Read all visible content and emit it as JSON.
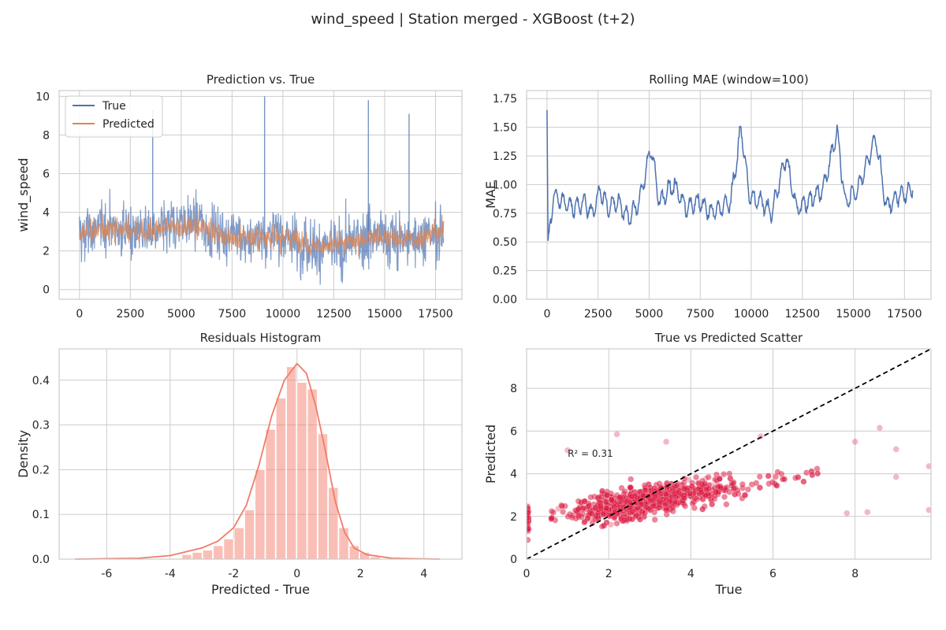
{
  "figure": {
    "suptitle": "wind_speed | Station merged - XGBoost (t+2)"
  },
  "colors": {
    "true_line": "#4C72B0",
    "pred_line": "#DD8452",
    "mae_line": "#4C72B0",
    "hist": "#F4806F",
    "kde": "#F07C68",
    "scatter": "#DC143C",
    "grid": "#CCCCCC",
    "axes_edge": "#CCCCCC",
    "diag": "#000000"
  },
  "chart_data": [
    {
      "type": "line",
      "title": "Prediction vs. True",
      "xlabel": "",
      "ylabel": "wind_speed",
      "xlim": [
        -1000,
        18800
      ],
      "ylim": [
        -0.5,
        10.3
      ],
      "xticks": [
        0,
        2500,
        5000,
        7500,
        10000,
        12500,
        15000,
        17500
      ],
      "yticks": [
        0,
        2,
        4,
        6,
        8,
        10
      ],
      "grid": true,
      "legend": {
        "placement": "top-left",
        "entries": [
          "True",
          "Predicted"
        ]
      },
      "n_points": 17900,
      "series": [
        {
          "name": "True",
          "color": "#4C72B0",
          "typical_range": [
            0.5,
            6.5
          ],
          "peak_values": [
            {
              "x": 9100,
              "y": 10
            },
            {
              "x": 14200,
              "y": 9.8
            },
            {
              "x": 3600,
              "y": 9.3
            },
            {
              "x": 16200,
              "y": 9.1
            }
          ]
        },
        {
          "name": "Predicted",
          "color": "#DD8452",
          "typical_range": [
            1.3,
            4.8
          ]
        }
      ]
    },
    {
      "type": "line",
      "title": "Rolling MAE (window=100)",
      "xlabel": "",
      "ylabel": "MAE",
      "xlim": [
        -1000,
        18800
      ],
      "ylim": [
        0,
        1.82
      ],
      "xticks": [
        0,
        2500,
        5000,
        7500,
        10000,
        12500,
        15000,
        17500
      ],
      "yticks": [
        0.0,
        0.25,
        0.5,
        0.75,
        1.0,
        1.25,
        1.5,
        1.75
      ],
      "ytick_labels": [
        "0.00",
        "0.25",
        "0.50",
        "0.75",
        "1.00",
        "1.25",
        "1.50",
        "1.75"
      ],
      "grid": true,
      "keypoints": [
        {
          "x": 0,
          "y": 1.65
        },
        {
          "x": 50,
          "y": 0.45
        },
        {
          "x": 300,
          "y": 0.9
        },
        {
          "x": 800,
          "y": 0.85
        },
        {
          "x": 1300,
          "y": 0.8
        },
        {
          "x": 1800,
          "y": 0.85
        },
        {
          "x": 2200,
          "y": 0.75
        },
        {
          "x": 2600,
          "y": 0.95
        },
        {
          "x": 3000,
          "y": 0.8
        },
        {
          "x": 3500,
          "y": 0.85
        },
        {
          "x": 4000,
          "y": 0.7
        },
        {
          "x": 4500,
          "y": 0.85
        },
        {
          "x": 5100,
          "y": 1.32
        },
        {
          "x": 5500,
          "y": 0.85
        },
        {
          "x": 6200,
          "y": 1.0
        },
        {
          "x": 6800,
          "y": 0.8
        },
        {
          "x": 7500,
          "y": 0.85
        },
        {
          "x": 8000,
          "y": 0.75
        },
        {
          "x": 8500,
          "y": 0.8
        },
        {
          "x": 9000,
          "y": 0.85
        },
        {
          "x": 9500,
          "y": 1.5
        },
        {
          "x": 9900,
          "y": 0.9
        },
        {
          "x": 10500,
          "y": 0.85
        },
        {
          "x": 11000,
          "y": 0.75
        },
        {
          "x": 11700,
          "y": 1.25
        },
        {
          "x": 12200,
          "y": 0.8
        },
        {
          "x": 12800,
          "y": 0.85
        },
        {
          "x": 13500,
          "y": 0.95
        },
        {
          "x": 14200,
          "y": 1.47
        },
        {
          "x": 14600,
          "y": 0.85
        },
        {
          "x": 15200,
          "y": 0.95
        },
        {
          "x": 16100,
          "y": 1.42
        },
        {
          "x": 16600,
          "y": 0.8
        },
        {
          "x": 17200,
          "y": 0.9
        },
        {
          "x": 17900,
          "y": 0.95
        }
      ]
    },
    {
      "type": "bar",
      "title": "Residuals Histogram",
      "xlabel": "Predicted - True",
      "ylabel": "Density",
      "xlim": [
        -7.5,
        5.2
      ],
      "ylim": [
        0,
        0.47
      ],
      "xticks": [
        -6,
        -4,
        -2,
        0,
        2,
        4
      ],
      "yticks": [
        0.0,
        0.1,
        0.2,
        0.3,
        0.4
      ],
      "ytick_labels": [
        "0.0",
        "0.1",
        "0.2",
        "0.3",
        "0.4"
      ],
      "grid": true,
      "bin_width": 0.33,
      "bins": [
        {
          "x0": -3.63,
          "density": 0.01
        },
        {
          "x0": -3.3,
          "density": 0.015
        },
        {
          "x0": -2.97,
          "density": 0.02
        },
        {
          "x0": -2.64,
          "density": 0.03
        },
        {
          "x0": -2.31,
          "density": 0.045
        },
        {
          "x0": -1.98,
          "density": 0.07
        },
        {
          "x0": -1.65,
          "density": 0.11
        },
        {
          "x0": -1.32,
          "density": 0.2
        },
        {
          "x0": -0.99,
          "density": 0.29
        },
        {
          "x0": -0.66,
          "density": 0.36
        },
        {
          "x0": -0.33,
          "density": 0.43
        },
        {
          "x0": 0.0,
          "density": 0.395
        },
        {
          "x0": 0.33,
          "density": 0.38
        },
        {
          "x0": 0.66,
          "density": 0.28
        },
        {
          "x0": 0.99,
          "density": 0.16
        },
        {
          "x0": 1.32,
          "density": 0.07
        },
        {
          "x0": 1.65,
          "density": 0.03
        },
        {
          "x0": 1.98,
          "density": 0.015
        },
        {
          "x0": 2.31,
          "density": 0.005
        }
      ],
      "kde": [
        {
          "x": -7.0,
          "y": 0.0
        },
        {
          "x": -5.0,
          "y": 0.002
        },
        {
          "x": -4.0,
          "y": 0.008
        },
        {
          "x": -3.0,
          "y": 0.025
        },
        {
          "x": -2.5,
          "y": 0.04
        },
        {
          "x": -2.0,
          "y": 0.07
        },
        {
          "x": -1.6,
          "y": 0.12
        },
        {
          "x": -1.2,
          "y": 0.21
        },
        {
          "x": -0.8,
          "y": 0.32
        },
        {
          "x": -0.4,
          "y": 0.4
        },
        {
          "x": 0.0,
          "y": 0.437
        },
        {
          "x": 0.3,
          "y": 0.415
        },
        {
          "x": 0.6,
          "y": 0.34
        },
        {
          "x": 0.9,
          "y": 0.24
        },
        {
          "x": 1.2,
          "y": 0.13
        },
        {
          "x": 1.5,
          "y": 0.06
        },
        {
          "x": 1.8,
          "y": 0.025
        },
        {
          "x": 2.2,
          "y": 0.01
        },
        {
          "x": 3.0,
          "y": 0.002
        },
        {
          "x": 4.5,
          "y": 0.0
        }
      ]
    },
    {
      "type": "scatter",
      "title": "True vs Predicted Scatter",
      "xlabel": "True",
      "ylabel": "Predicted",
      "xlim": [
        0,
        9.85
      ],
      "ylim": [
        0,
        9.85
      ],
      "xticks": [
        0,
        2,
        4,
        6,
        8
      ],
      "yticks": [
        0,
        2,
        4,
        6,
        8
      ],
      "grid": true,
      "diagonal": true,
      "annotation": {
        "text": "R² = 0.31",
        "x": 1.0,
        "y": 4.8
      },
      "trend": {
        "slope": 0.31,
        "intercept": 1.85,
        "x_range": [
          0,
          9.8
        ]
      },
      "outliers": [
        {
          "x": 2.2,
          "y": 5.85
        },
        {
          "x": 8.6,
          "y": 6.15
        },
        {
          "x": 9.0,
          "y": 5.15
        },
        {
          "x": 9.8,
          "y": 4.35
        },
        {
          "x": 9.8,
          "y": 2.3
        },
        {
          "x": 9.0,
          "y": 3.85
        },
        {
          "x": 8.3,
          "y": 2.2
        },
        {
          "x": 7.8,
          "y": 2.15
        },
        {
          "x": 1.0,
          "y": 5.1
        },
        {
          "x": 5.7,
          "y": 5.75
        },
        {
          "x": 8.0,
          "y": 5.5
        },
        {
          "x": 3.4,
          "y": 5.5
        }
      ]
    }
  ]
}
